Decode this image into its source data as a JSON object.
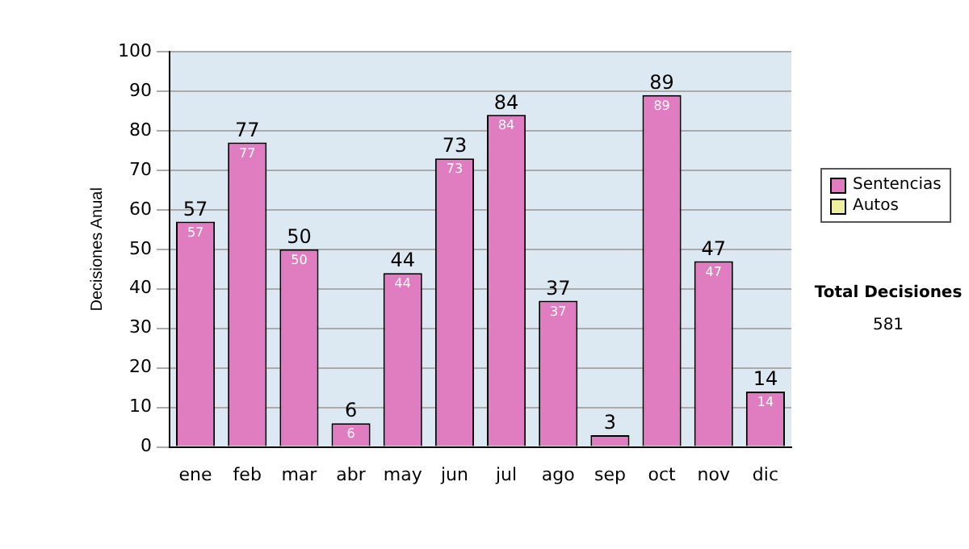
{
  "chart_data": {
    "type": "bar",
    "stacked": true,
    "ylabel": "Decisiones Anual",
    "categories": [
      "ene",
      "feb",
      "mar",
      "abr",
      "may",
      "jun",
      "jul",
      "ago",
      "sep",
      "oct",
      "nov",
      "dic"
    ],
    "series": [
      {
        "name": "Sentencias",
        "color": "#e07cc0",
        "values": [
          57,
          77,
          50,
          6,
          44,
          73,
          84,
          37,
          3,
          89,
          47,
          14
        ],
        "value_labels": [
          "57",
          "77",
          "50",
          "6",
          "44",
          "73",
          "84",
          "37",
          null,
          "89",
          "47",
          "14"
        ]
      },
      {
        "name": "Autos",
        "color": "#eef0a0",
        "values": [
          0,
          0,
          0,
          0,
          0,
          0,
          0,
          0,
          0,
          0,
          0,
          0
        ]
      }
    ],
    "ylim": [
      0,
      100
    ],
    "yticks": [
      0,
      10,
      20,
      30,
      40,
      50,
      60,
      70,
      80,
      90,
      100
    ],
    "grid": "y",
    "legend": "right",
    "totals": [
      "57",
      "77",
      "50",
      "6",
      "44",
      "73",
      "84",
      "37",
      "3",
      "89",
      "47",
      "14"
    ],
    "annotations": [
      "Total Decisiones",
      "581"
    ]
  }
}
